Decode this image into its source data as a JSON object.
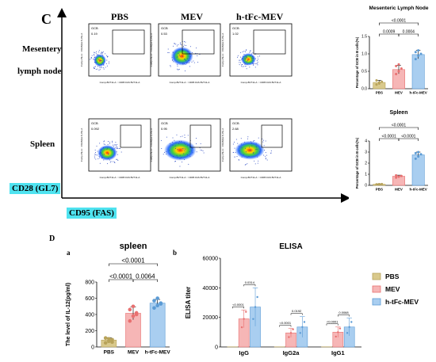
{
  "panel_c": {
    "letter": "C",
    "columns": [
      "PBS",
      "MEV",
      "h-tFc-MEV"
    ],
    "rows": [
      "Mesentery",
      "lymph node",
      "Spleen"
    ],
    "gate_label": "GCB",
    "gate_values": [
      [
        "0.19",
        "0.53",
        "1.02"
      ],
      [
        "0.092",
        "0.95",
        "2.68"
      ]
    ],
    "axis_y": "Comp-PE-A :: CD28(GL7)-PE-A",
    "axis_x": "Comp-BV711-A :: CD95 FAS BV711-A",
    "axis_y_marker": "CD28 (GL7)",
    "axis_x_marker": "CD95 (FAS)"
  },
  "panel_d": {
    "letter": "D",
    "sub_a": "a",
    "sub_b": "b"
  },
  "chart_data": [
    {
      "type": "bar",
      "title": "Mesenteric Lymph Node",
      "ylabel": "Percentage of GCB in B cells(%)",
      "categories": [
        "PBS",
        "MEV",
        "h-tFc-MEV"
      ],
      "values": [
        0.18,
        0.55,
        0.98
      ],
      "errors": [
        0.06,
        0.12,
        0.12
      ],
      "ylim": [
        0,
        1.5
      ],
      "yticks": [
        "0.0",
        "0.5",
        "1.0",
        "1.5"
      ],
      "colors": [
        "#d9c98c",
        "#f6b6b6",
        "#a9cef0"
      ],
      "dot_color": [
        "#b8a35a",
        "#e87070",
        "#5b9bd5"
      ],
      "points": [
        [
          0.12,
          0.15,
          0.2,
          0.24,
          0.18
        ],
        [
          0.42,
          0.5,
          0.58,
          0.65,
          0.7
        ],
        [
          0.85,
          0.95,
          1.0,
          1.05,
          1.1
        ]
      ],
      "brackets": [
        {
          "from": 0,
          "to": 1,
          "label": "0.0009",
          "level": 1
        },
        {
          "from": 1,
          "to": 2,
          "label": "0.0004",
          "level": 1
        },
        {
          "from": 0,
          "to": 2,
          "label": "<0.0001",
          "level": 2
        }
      ]
    },
    {
      "type": "bar",
      "title": "Spleen",
      "ylabel": "Percentage of GCB in B cells(%)",
      "categories": [
        "PBS",
        "MEV",
        "h-tFc-MEV"
      ],
      "values": [
        0.1,
        0.82,
        2.75
      ],
      "errors": [
        0.03,
        0.1,
        0.25
      ],
      "ylim": [
        0,
        4
      ],
      "yticks": [
        "0",
        "1",
        "2",
        "3",
        "4"
      ],
      "colors": [
        "#d9c98c",
        "#f6b6b6",
        "#a9cef0"
      ],
      "dot_color": [
        "#b8a35a",
        "#e87070",
        "#5b9bd5"
      ],
      "points": [
        [
          0.08,
          0.1,
          0.12,
          0.09,
          0.11
        ],
        [
          0.7,
          0.8,
          0.85,
          0.9,
          0.78
        ],
        [
          2.4,
          2.6,
          2.8,
          2.9,
          3.0
        ]
      ],
      "brackets": [
        {
          "from": 0,
          "to": 1,
          "label": "<0.0001",
          "level": 1
        },
        {
          "from": 1,
          "to": 2,
          "label": "<0.0001",
          "level": 1
        },
        {
          "from": 0,
          "to": 2,
          "label": "<0.0001",
          "level": 2
        }
      ]
    },
    {
      "type": "bar",
      "title": "spleen",
      "ylabel": "The level of IL-12(pg/ml)",
      "categories": [
        "PBS",
        "MEV",
        "h-tFc-MEV"
      ],
      "values": [
        85,
        415,
        540
      ],
      "errors": [
        30,
        80,
        45
      ],
      "ylim": [
        0,
        800
      ],
      "yticks": [
        "0",
        "200",
        "400",
        "600",
        "800"
      ],
      "colors": [
        "#d9c98c",
        "#f6b6b6",
        "#a9cef0"
      ],
      "dot_color": [
        "#b8a35a",
        "#e87070",
        "#5b9bd5"
      ],
      "points": [
        [
          50,
          70,
          90,
          110,
          100,
          60
        ],
        [
          320,
          380,
          420,
          460,
          500,
          400
        ],
        [
          480,
          510,
          540,
          570,
          600,
          530
        ]
      ],
      "brackets": [
        {
          "from": 0,
          "to": 1,
          "label": "<0.0001",
          "level": 1
        },
        {
          "from": 1,
          "to": 2,
          "label": "0.0064",
          "level": 1
        },
        {
          "from": 0,
          "to": 2,
          "label": "<0.0001",
          "level": 2
        }
      ]
    },
    {
      "type": "bar",
      "title": "ELISA",
      "ylabel": "ELISA titer",
      "categories": [
        "IgG",
        "IgG2a",
        "IgG1"
      ],
      "series": [
        {
          "name": "PBS",
          "values": [
            100,
            100,
            100
          ],
          "errors": [
            0,
            0,
            0
          ]
        },
        {
          "name": "MEV",
          "values": [
            19000,
            9500,
            10000
          ],
          "errors": [
            6000,
            3000,
            3500
          ]
        },
        {
          "name": "h-tFc-MEV",
          "values": [
            27000,
            13500,
            13500
          ],
          "errors": [
            13000,
            7000,
            6000
          ]
        }
      ],
      "ylim": [
        0,
        60000
      ],
      "yticks": [
        "0",
        "20000",
        "40000",
        "60000"
      ],
      "colors": [
        "#d9c98c",
        "#f6b6b6",
        "#a9cef0"
      ],
      "dot_color": [
        "#b8a35a",
        "#e87070",
        "#5b9bd5"
      ],
      "brackets": [
        {
          "group": 0,
          "from": 0,
          "to": 1,
          "label": "<0.0001"
        },
        {
          "group": 0,
          "from": 1,
          "to": 2,
          "label": "0.0314"
        },
        {
          "group": 1,
          "from": 0,
          "to": 1,
          "label": "<0.0001"
        },
        {
          "group": 1,
          "from": 1,
          "to": 2,
          "label": "0.0192"
        },
        {
          "group": 2,
          "from": 0,
          "to": 1,
          "label": "<0.0001"
        },
        {
          "group": 2,
          "from": 1,
          "to": 2,
          "label": "0.0068"
        }
      ],
      "legend": [
        "PBS",
        "MEV",
        "h-tFc-MEV"
      ],
      "legend_position": "right"
    }
  ]
}
